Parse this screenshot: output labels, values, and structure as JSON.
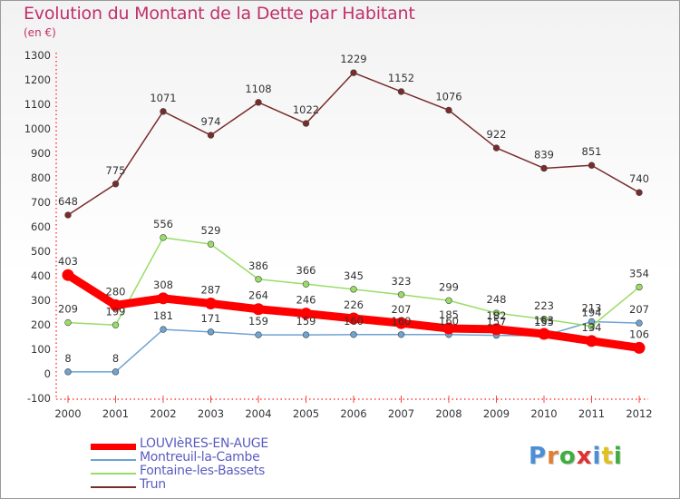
{
  "header": {
    "title": "Evolution du Montant de la Dette par Habitant",
    "unit": "(en €)"
  },
  "logo": {
    "text": "Proxiti",
    "colors": [
      "#4a8fd8",
      "#e08030",
      "#3fae3f",
      "#e03030",
      "#4a8fd8",
      "#e0c020",
      "#3fae3f"
    ]
  },
  "chart_data": {
    "type": "line",
    "title": "Evolution du Montant de la Dette par Habitant",
    "ylabel": "(en €)",
    "xlabel": "",
    "x": [
      "2000",
      "2001",
      "2002",
      "2003",
      "2004",
      "2005",
      "2006",
      "2007",
      "2008",
      "2009",
      "2010",
      "2011",
      "2012"
    ],
    "ylim": [
      -100,
      1300
    ],
    "yticks": [
      -100,
      0,
      100,
      200,
      300,
      400,
      500,
      600,
      700,
      800,
      900,
      1000,
      1100,
      1200,
      1300
    ],
    "grid": false,
    "legend_position": "bottom-left",
    "series": [
      {
        "name": "LOUVIèRES-EN-AUGE",
        "color": "#ff0000",
        "values": [
          403,
          280,
          308,
          287,
          264,
          246,
          226,
          207,
          185,
          182,
          163,
          134,
          106
        ],
        "labels": [
          "403",
          "280",
          "308",
          "287",
          "264",
          "246",
          "226",
          "207",
          "185",
          "182",
          "163",
          "134",
          "106"
        ]
      },
      {
        "name": "Montreuil-la-Cambe",
        "color": "#6fa3d0",
        "values": [
          8,
          8,
          181,
          171,
          159,
          159,
          160,
          160,
          160,
          157,
          155,
          213,
          207
        ],
        "labels": [
          "8",
          "8",
          "181",
          "171",
          "159",
          "159",
          "160",
          "160",
          "160",
          "157",
          "155",
          "213",
          "207"
        ]
      },
      {
        "name": "Fontaine-les-Bassets",
        "color": "#99dd66",
        "values": [
          209,
          199,
          556,
          529,
          386,
          366,
          345,
          323,
          299,
          248,
          223,
          194,
          354
        ],
        "labels": [
          "209",
          "199",
          "556",
          "529",
          "386",
          "366",
          "345",
          "323",
          "299",
          "248",
          "223",
          "194",
          "354"
        ]
      },
      {
        "name": "Trun",
        "color": "#7a2b2b",
        "values": [
          648,
          775,
          1071,
          974,
          1108,
          1022,
          1229,
          1152,
          1076,
          922,
          839,
          851,
          740
        ],
        "labels": [
          "648",
          "775",
          "1071",
          "974",
          "1108",
          "1022",
          "1229",
          "1152",
          "1076",
          "922",
          "839",
          "851",
          "740"
        ]
      }
    ]
  }
}
